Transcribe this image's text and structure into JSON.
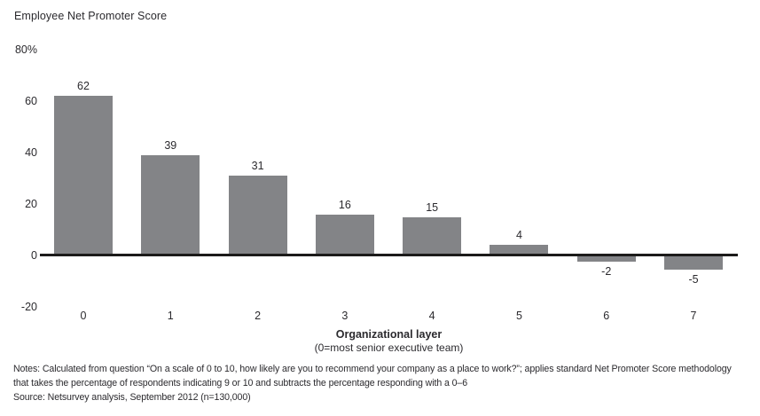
{
  "chart_data": {
    "type": "bar",
    "title": "Employee Net Promoter Score",
    "categories": [
      "0",
      "1",
      "2",
      "3",
      "4",
      "5",
      "6",
      "7"
    ],
    "values": [
      62,
      39,
      31,
      16,
      15,
      4,
      -2,
      -5
    ],
    "xlabel": "Organizational layer",
    "xlabel_note": "(0=most senior executive team)",
    "ylabel": "",
    "ylim": [
      -20,
      80
    ],
    "yticks": [
      {
        "label": "80%",
        "value": 80
      },
      {
        "label": "60",
        "value": 60
      },
      {
        "label": "40",
        "value": 40
      },
      {
        "label": "20",
        "value": 20
      },
      {
        "label": "0",
        "value": 0
      },
      {
        "label": "-20",
        "value": -20
      }
    ],
    "grid": false,
    "legend": null,
    "bar_color": "#838487",
    "baseline_color": "#1c1b1a"
  },
  "footer": {
    "notes_line1": "Notes: Calculated from question “On a scale of 0 to 10, how likely are you to recommend your company as a place to work?”; applies standard Net Promoter Score methodology",
    "notes_line2": "that takes the percentage of respondents indicating 9 or 10 and subtracts the percentage responding with a 0–6",
    "source": "Source: Netsurvey analysis, September 2012 (n=130,000)"
  }
}
